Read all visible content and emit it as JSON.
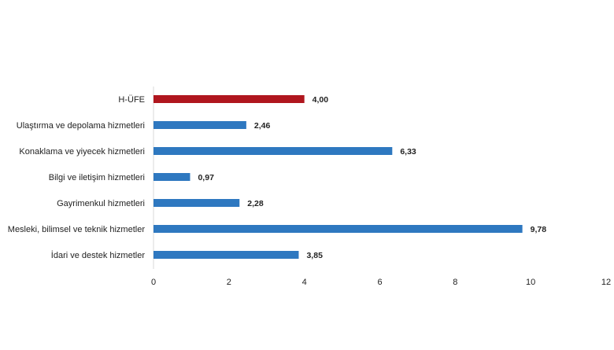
{
  "chart_data": {
    "type": "bar",
    "orientation": "horizontal",
    "categories": [
      "H-ÜFE",
      "Ulaştırma ve depolama hizmetleri",
      "Konaklama ve yiyecek hizmetleri",
      "Bilgi ve iletişim hizmetleri",
      "Gayrimenkul hizmetleri",
      "Mesleki, bilimsel ve teknik hizmetler",
      "İdari ve destek hizmetler"
    ],
    "values": [
      4.0,
      2.46,
      6.33,
      0.97,
      2.28,
      9.78,
      3.85
    ],
    "data_labels": [
      "4,00",
      "2,46",
      "6,33",
      "0,97",
      "2,28",
      "9,78",
      "3,85"
    ],
    "bar_colors": [
      "#b0161e",
      "#2e78c0",
      "#2e78c0",
      "#2e78c0",
      "#2e78c0",
      "#2e78c0",
      "#2e78c0"
    ],
    "xlim": [
      0,
      12
    ],
    "x_ticks": [
      0,
      2,
      4,
      6,
      8,
      10,
      12
    ],
    "x_tick_labels": [
      "0",
      "2",
      "4",
      "6",
      "8",
      "10",
      "12"
    ],
    "title": "",
    "xlabel": "",
    "ylabel": "",
    "grid": false,
    "legend": "none",
    "axis_color": "#d9d9d9",
    "text_color": "#222222"
  }
}
